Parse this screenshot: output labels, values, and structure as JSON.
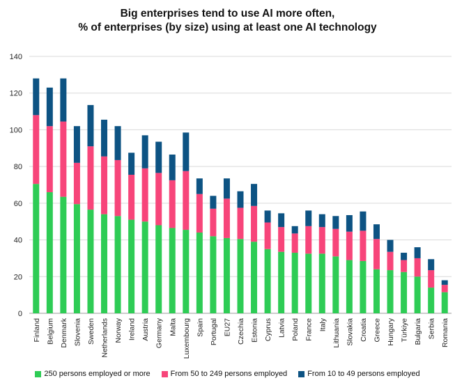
{
  "chart_data": {
    "type": "bar",
    "stacked": true,
    "title_line1": "Big enterprises tend to use AI more often,",
    "title_line2": "% of enterprises (by size) using at least one AI technology",
    "ylim": [
      0,
      140
    ],
    "yticks": [
      0,
      20,
      40,
      60,
      80,
      100,
      120,
      140
    ],
    "grid": true,
    "legend_position": "bottom",
    "categories": [
      "Finland",
      "Belgium",
      "Denmark",
      "Slovenia",
      "Sweden",
      "Netherlands",
      "Norway",
      "Ireland",
      "Austria",
      "Germany",
      "Malta",
      "Luxembourg",
      "Spain",
      "Portugal",
      "EU27",
      "Czechia",
      "Estonia",
      "Cyprus",
      "Latvia",
      "Poland",
      "France",
      "Italy",
      "Lithuania",
      "Slovakia",
      "Croatia",
      "Greece",
      "Hungary",
      "Türkiye",
      "Bulgaria",
      "Serbia",
      "Romania"
    ],
    "series": [
      {
        "name": "250 persons employed or more",
        "color": "#2ecc55",
        "values": [
          70.5,
          66,
          63.5,
          59.5,
          56.5,
          54,
          53,
          51,
          50,
          48,
          46.5,
          45.5,
          44,
          42,
          41,
          40.5,
          39,
          35,
          33.5,
          33,
          32.5,
          32.5,
          31,
          29,
          28.5,
          24,
          23.5,
          22.5,
          20,
          14,
          11.5
        ]
      },
      {
        "name": "From 50 to 249 persons employed",
        "color": "#f7457a",
        "values": [
          37.5,
          36,
          41,
          22.5,
          34.5,
          31.5,
          30.5,
          24.5,
          29,
          28.5,
          26,
          32,
          21,
          15,
          21.5,
          17,
          19.5,
          14.5,
          13.5,
          10.5,
          15,
          14.5,
          15,
          15.5,
          16.5,
          16.5,
          10,
          6.5,
          10,
          9.5,
          4
        ]
      },
      {
        "name": "From 10 to 49 persons employed",
        "color": "#0d5383",
        "values": [
          20,
          21,
          23.5,
          20,
          22.5,
          20,
          18.5,
          12,
          18,
          17,
          14,
          21,
          8.5,
          7,
          11,
          9,
          12,
          6.5,
          7.5,
          4,
          8.5,
          7,
          7,
          9,
          10.5,
          8,
          6.5,
          4,
          6,
          6,
          2.5
        ]
      }
    ]
  }
}
